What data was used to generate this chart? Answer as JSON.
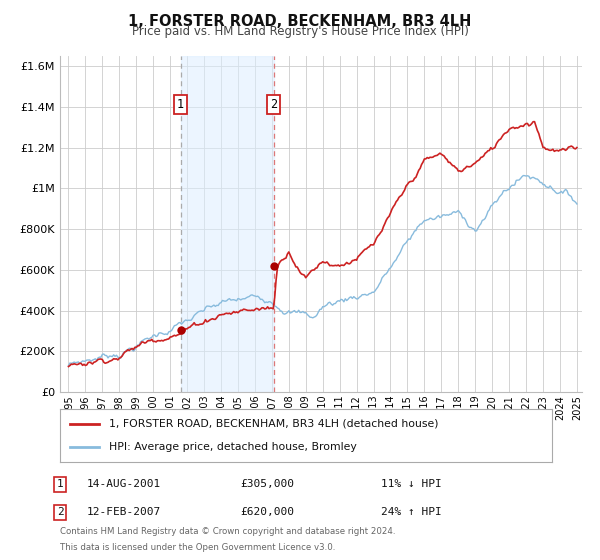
{
  "title": "1, FORSTER ROAD, BECKENHAM, BR3 4LH",
  "subtitle": "Price paid vs. HM Land Registry's House Price Index (HPI)",
  "line1_label": "1, FORSTER ROAD, BECKENHAM, BR3 4LH (detached house)",
  "line1_color": "#cc2222",
  "line2_label": "HPI: Average price, detached house, Bromley",
  "line2_color": "#88bbdd",
  "marker_color": "#aa0000",
  "sale1_year": 2001.62,
  "sale1_price": 305000,
  "sale1_date": "14-AUG-2001",
  "sale1_hpi": "11% ↓ HPI",
  "sale2_year": 2007.12,
  "sale2_price": 620000,
  "sale2_date": "12-FEB-2007",
  "sale2_hpi": "24% ↑ HPI",
  "shade_color": "#ddeeff",
  "shade_alpha": 0.55,
  "ylim_min": 0,
  "ylim_max": 1650000,
  "yticks": [
    0,
    200000,
    400000,
    600000,
    800000,
    1000000,
    1200000,
    1400000,
    1600000
  ],
  "ytick_labels": [
    "£0",
    "£200K",
    "£400K",
    "£600K",
    "£800K",
    "£1M",
    "£1.2M",
    "£1.4M",
    "£1.6M"
  ],
  "xlim_start": 1994.5,
  "xlim_end": 2025.3,
  "xticks": [
    1995,
    1996,
    1997,
    1998,
    1999,
    2000,
    2001,
    2002,
    2003,
    2004,
    2005,
    2006,
    2007,
    2008,
    2009,
    2010,
    2011,
    2012,
    2013,
    2014,
    2015,
    2016,
    2017,
    2018,
    2019,
    2020,
    2021,
    2022,
    2023,
    2024,
    2025
  ],
  "grid_color": "#cccccc",
  "bg_color": "#ffffff",
  "footer_line1": "Contains HM Land Registry data © Crown copyright and database right 2024.",
  "footer_line2": "This data is licensed under the Open Government Licence v3.0."
}
